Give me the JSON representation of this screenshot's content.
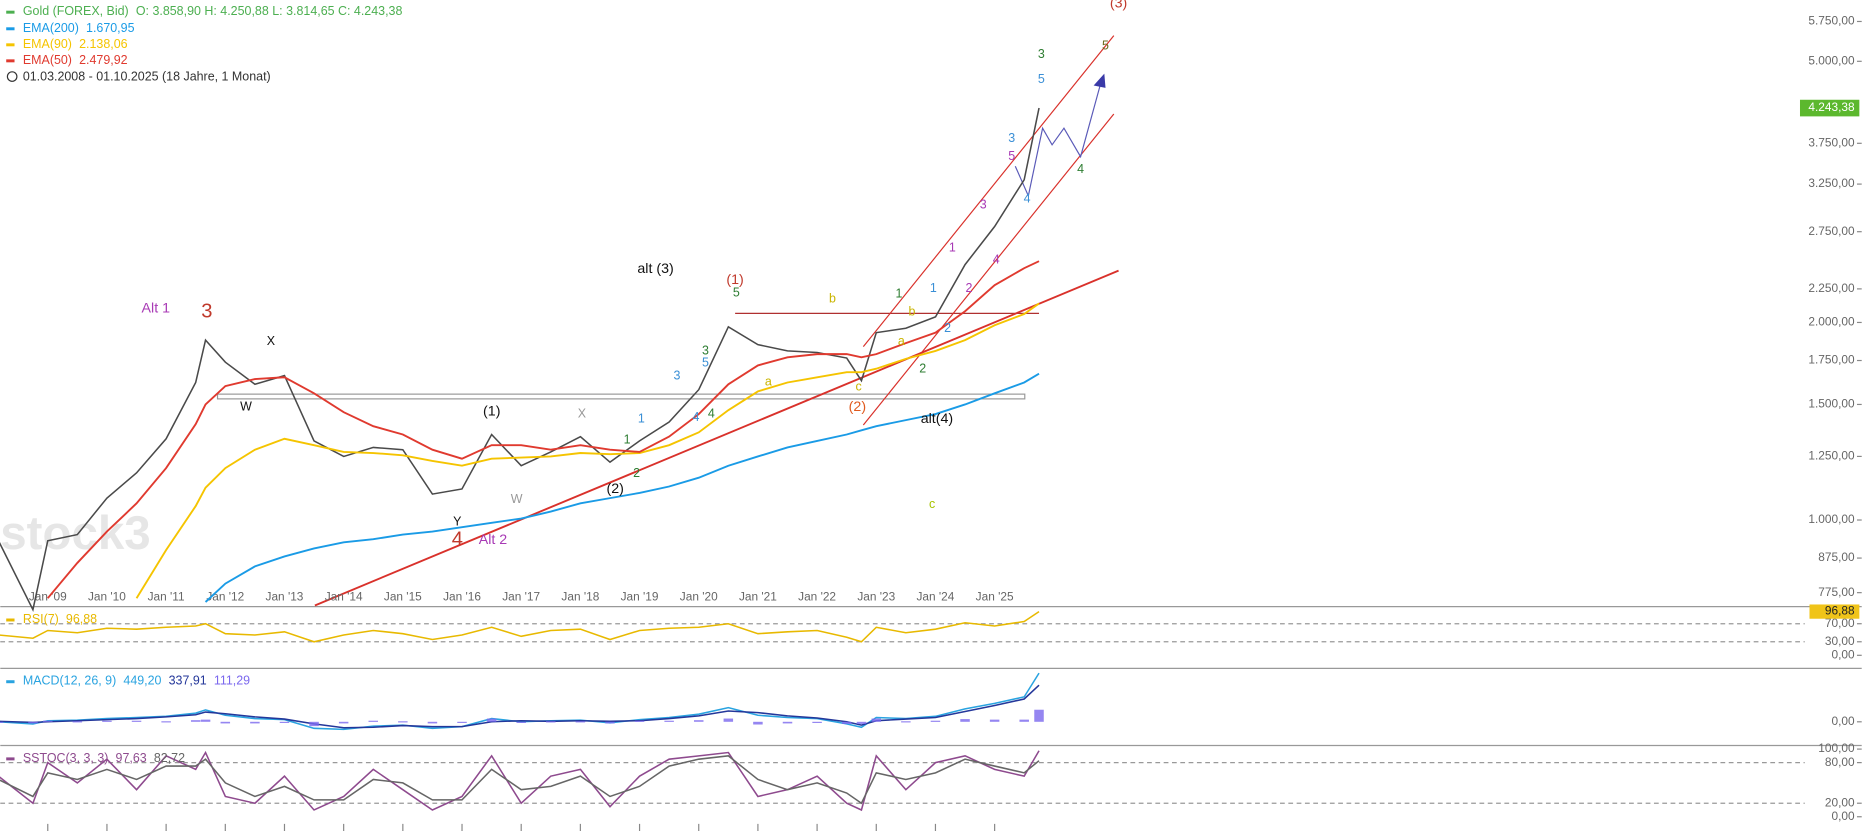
{
  "chart_data": [
    {
      "type": "line",
      "log_scale": true,
      "title": "Gold (FOREX, Bid)",
      "ohlc": "O: 3.858,90 H: 4.250,88 L: 3.814,65 C: 4.243,38",
      "date_range": "01.03.2008 - 01.10.2025   (18 Jahre, 1 Monat)",
      "watermark": "stock3",
      "x": [
        "2008-03",
        "2008-10",
        "2009-01",
        "2009-07",
        "2010-01",
        "2010-07",
        "2011-01",
        "2011-07",
        "2011-09",
        "2012-01",
        "2012-07",
        "2013-01",
        "2013-07",
        "2014-01",
        "2014-07",
        "2015-01",
        "2015-07",
        "2016-01",
        "2016-07",
        "2017-01",
        "2017-07",
        "2018-01",
        "2018-07",
        "2019-01",
        "2019-07",
        "2020-01",
        "2020-07",
        "2021-01",
        "2021-07",
        "2022-01",
        "2022-07",
        "2022-10",
        "2023-01",
        "2023-07",
        "2024-01",
        "2024-07",
        "2025-01",
        "2025-07",
        "2025-10"
      ],
      "series": [
        {
          "name": "Gold (FOREX, Bid)",
          "color": "#4a4a4a",
          "last_label": "4.243,38",
          "values": [
            930,
            730,
            930,
            950,
            1080,
            1180,
            1330,
            1620,
            1880,
            1740,
            1610,
            1660,
            1320,
            1250,
            1290,
            1280,
            1095,
            1115,
            1350,
            1210,
            1270,
            1340,
            1225,
            1320,
            1410,
            1580,
            1970,
            1850,
            1810,
            1800,
            1765,
            1630,
            1930,
            1960,
            2040,
            2450,
            2800,
            3300,
            4243.38
          ]
        },
        {
          "name": "EMA(200)",
          "color": "#1a9be6",
          "last_label": "1.670,95",
          "values": [
            null,
            null,
            null,
            null,
            null,
            null,
            null,
            null,
            750,
            800,
            850,
            880,
            905,
            925,
            935,
            950,
            960,
            975,
            990,
            1005,
            1030,
            1060,
            1080,
            1100,
            1125,
            1160,
            1210,
            1250,
            1290,
            1320,
            1350,
            1370,
            1390,
            1420,
            1450,
            1500,
            1560,
            1620,
            1670.95
          ]
        },
        {
          "name": "EMA(90)",
          "color": "#f5c400",
          "last_label": "2.138,06",
          "values": [
            null,
            null,
            null,
            null,
            null,
            760,
            900,
            1050,
            1120,
            1200,
            1280,
            1330,
            1300,
            1270,
            1265,
            1255,
            1230,
            1210,
            1240,
            1245,
            1250,
            1265,
            1260,
            1265,
            1300,
            1360,
            1470,
            1570,
            1620,
            1650,
            1680,
            1680,
            1700,
            1760,
            1810,
            1880,
            1980,
            2060,
            2138.06
          ]
        },
        {
          "name": "EMA(50)",
          "color": "#e03a2f",
          "last_label": "2.479,92",
          "values": [
            null,
            null,
            760,
            860,
            960,
            1060,
            1200,
            1400,
            1500,
            1600,
            1640,
            1650,
            1560,
            1460,
            1390,
            1350,
            1280,
            1240,
            1300,
            1300,
            1280,
            1300,
            1280,
            1270,
            1340,
            1450,
            1610,
            1720,
            1770,
            1790,
            1790,
            1770,
            1790,
            1860,
            1930,
            2080,
            2280,
            2420,
            2479.92
          ]
        }
      ],
      "ylim": [
        741,
        6200
      ],
      "yticks": [
        {
          "value": 5750,
          "label": "5.750,00"
        },
        {
          "value": 5000,
          "label": "5.000,00"
        },
        {
          "value": 3750,
          "label": "3.750,00"
        },
        {
          "value": 3250,
          "label": "3.250,00"
        },
        {
          "value": 2750,
          "label": "2.750,00"
        },
        {
          "value": 2250,
          "label": "2.250,00"
        },
        {
          "value": 2000,
          "label": "2.000,00"
        },
        {
          "value": 1750,
          "label": "1.750,00"
        },
        {
          "value": 1500,
          "label": "1.500,00"
        },
        {
          "value": 1250,
          "label": "1.250,00"
        },
        {
          "value": 1000,
          "label": "1.000,00"
        },
        {
          "value": 875,
          "label": "875,00"
        },
        {
          "value": 775,
          "label": "775,00"
        }
      ],
      "xticks": [
        {
          "value": "2009-01",
          "label": "Jan '09"
        },
        {
          "value": "2010-01",
          "label": "Jan '10"
        },
        {
          "value": "2011-01",
          "label": "Jan '11"
        },
        {
          "value": "2012-01",
          "label": "Jan '12"
        },
        {
          "value": "2013-01",
          "label": "Jan '13"
        },
        {
          "value": "2014-01",
          "label": "Jan '14"
        },
        {
          "value": "2015-01",
          "label": "Jan '15"
        },
        {
          "value": "2016-01",
          "label": "Jan '16"
        },
        {
          "value": "2017-01",
          "label": "Jan '17"
        },
        {
          "value": "2018-01",
          "label": "Jan '18"
        },
        {
          "value": "2019-01",
          "label": "Jan '19"
        },
        {
          "value": "2020-01",
          "label": "Jan '20"
        },
        {
          "value": "2021-01",
          "label": "Jan '21"
        },
        {
          "value": "2022-01",
          "label": "Jan '22"
        },
        {
          "value": "2023-01",
          "label": "Jan '23"
        },
        {
          "value": "2024-01",
          "label": "Jan '24"
        },
        {
          "value": "2025-01",
          "label": "Jan '25"
        }
      ],
      "annotations": [
        {
          "text": "(3)",
          "color": "#c0392b"
        },
        {
          "text": "3",
          "color": "#2e7d32"
        },
        {
          "text": "5",
          "color": "#6b6b1e"
        },
        {
          "text": "5",
          "color": "#3a8fd6"
        },
        {
          "text": "4",
          "color": "#2e7d32"
        },
        {
          "text": "alt (3)",
          "color": "#111"
        },
        {
          "text": "(1)",
          "color": "#c0392b"
        },
        {
          "text": "5",
          "color": "#2e7d32"
        },
        {
          "text": "b",
          "color": "#c9b400"
        },
        {
          "text": "Alt 1",
          "color": "#a83ab5"
        },
        {
          "text": "3",
          "color": "#c0392b"
        },
        {
          "text": "X",
          "color": "#111"
        },
        {
          "text": "W",
          "color": "#111"
        },
        {
          "text": "(1)",
          "color": "#111"
        },
        {
          "text": "X",
          "color": "#999"
        },
        {
          "text": "(2)",
          "color": "#111"
        },
        {
          "text": "W",
          "color": "#999"
        },
        {
          "text": "Y",
          "color": "#111"
        },
        {
          "text": "4",
          "color": "#c0392b"
        },
        {
          "text": "Alt 2",
          "color": "#a83ab5"
        },
        {
          "text": "(2)",
          "color": "#e05a1e"
        },
        {
          "text": "alt(4)",
          "color": "#111"
        },
        {
          "text": "c",
          "color": "#a8c400"
        },
        {
          "text": "a",
          "color": "#c9b400"
        },
        {
          "text": "c",
          "color": "#c9b400"
        },
        {
          "text": "1",
          "color": "#a83ab5"
        },
        {
          "text": "3",
          "color": "#a83ab5"
        },
        {
          "text": "5",
          "color": "#a83ab5"
        },
        {
          "text": "2",
          "color": "#a83ab5"
        },
        {
          "text": "4",
          "color": "#a83ab5"
        },
        {
          "text": "3",
          "color": "#3a8fd6"
        },
        {
          "text": "4",
          "color": "#3a8fd6"
        },
        {
          "text": "1",
          "color": "#3a8fd6"
        },
        {
          "text": "2",
          "color": "#3a8fd6"
        },
        {
          "text": "3",
          "color": "#2e7d32"
        },
        {
          "text": "5",
          "color": "#3a8fd6"
        },
        {
          "text": "3",
          "color": "#3a8fd6"
        },
        {
          "text": "4",
          "color": "#3a8fd6"
        },
        {
          "text": "4",
          "color": "#2e7d32"
        },
        {
          "text": "1",
          "color": "#3a8fd6"
        },
        {
          "text": "1",
          "color": "#2e7d32"
        },
        {
          "text": "2",
          "color": "#2e7d32"
        },
        {
          "text": "2",
          "color": "#2e7d32"
        },
        {
          "text": "1",
          "color": "#2e7d32"
        },
        {
          "text": "a",
          "color": "#c9b400"
        },
        {
          "text": "b",
          "color": "#c9b400"
        }
      ]
    },
    {
      "type": "line",
      "series": [
        {
          "name": "RSI(7)",
          "color": "#e8b900",
          "last_label": "96,88",
          "values": [
            45,
            38,
            55,
            50,
            60,
            58,
            62,
            65,
            70,
            48,
            45,
            52,
            30,
            45,
            55,
            48,
            35,
            45,
            62,
            42,
            55,
            58,
            35,
            55,
            60,
            62,
            70,
            48,
            52,
            55,
            40,
            30,
            62,
            50,
            58,
            72,
            65,
            75,
            96.88
          ]
        }
      ],
      "ylim": [
        0,
        100
      ],
      "yticks": [
        {
          "value": 70,
          "label": "70,00"
        },
        {
          "value": 30,
          "label": "30,00"
        },
        {
          "value": 0,
          "label": "0,00"
        }
      ],
      "levels": [
        70,
        30
      ]
    },
    {
      "type": "line",
      "series": [
        {
          "name": "MACD(12, 26, 9)",
          "color": "#29a3e0",
          "last_label": "449,20",
          "values": [
            0,
            -20,
            10,
            15,
            30,
            40,
            50,
            80,
            110,
            60,
            30,
            20,
            -60,
            -70,
            -40,
            -30,
            -60,
            -45,
            30,
            0,
            10,
            15,
            -10,
            20,
            40,
            70,
            130,
            60,
            40,
            30,
            -20,
            -50,
            40,
            30,
            50,
            120,
            170,
            230,
            449.2
          ]
        },
        {
          "color": "#24379a",
          "last_label": "337,91",
          "values": [
            5,
            -5,
            0,
            10,
            20,
            30,
            45,
            65,
            90,
            75,
            45,
            25,
            -20,
            -55,
            -50,
            -35,
            -45,
            -45,
            0,
            10,
            5,
            10,
            5,
            10,
            30,
            55,
            100,
            85,
            55,
            35,
            0,
            -30,
            10,
            25,
            40,
            95,
            150,
            210,
            337.91
          ]
        },
        {
          "color": "#7b68ee",
          "style": "histogram",
          "last_label": "111,29",
          "values": [
            -5,
            -15,
            10,
            5,
            10,
            10,
            5,
            15,
            20,
            -15,
            -15,
            -5,
            -40,
            -15,
            10,
            5,
            -15,
            0,
            30,
            -10,
            5,
            5,
            -15,
            10,
            10,
            15,
            30,
            -25,
            -15,
            -5,
            -20,
            -20,
            30,
            5,
            10,
            25,
            20,
            20,
            111.29
          ]
        }
      ],
      "ylim": [
        -186,
        471
      ],
      "yticks": [
        {
          "value": 0,
          "label": "0,00"
        }
      ]
    },
    {
      "type": "line",
      "series": [
        {
          "name": "SSTOC(3, 3, 3)",
          "color": "#8e4a8e",
          "last_label": "97,63",
          "values": [
            60,
            20,
            80,
            50,
            85,
            40,
            90,
            70,
            95,
            30,
            20,
            60,
            10,
            30,
            70,
            40,
            10,
            30,
            90,
            20,
            60,
            70,
            15,
            60,
            85,
            90,
            95,
            30,
            40,
            60,
            20,
            10,
            90,
            40,
            80,
            90,
            70,
            60,
            97.63
          ]
        },
        {
          "color": "#666666",
          "last_label": "82,72",
          "values": [
            55,
            30,
            65,
            55,
            70,
            55,
            75,
            75,
            85,
            50,
            30,
            45,
            25,
            25,
            55,
            50,
            25,
            25,
            70,
            40,
            45,
            60,
            30,
            45,
            75,
            85,
            90,
            55,
            40,
            50,
            35,
            20,
            65,
            55,
            65,
            85,
            75,
            65,
            82.72
          ]
        }
      ],
      "ylim": [
        0,
        100
      ],
      "yticks": [
        {
          "value": 100,
          "label": "100,00"
        },
        {
          "value": 80,
          "label": "80,00"
        },
        {
          "value": 20,
          "label": "20,00"
        },
        {
          "value": 0,
          "label": "0,00"
        }
      ],
      "levels": [
        80,
        20
      ]
    }
  ]
}
